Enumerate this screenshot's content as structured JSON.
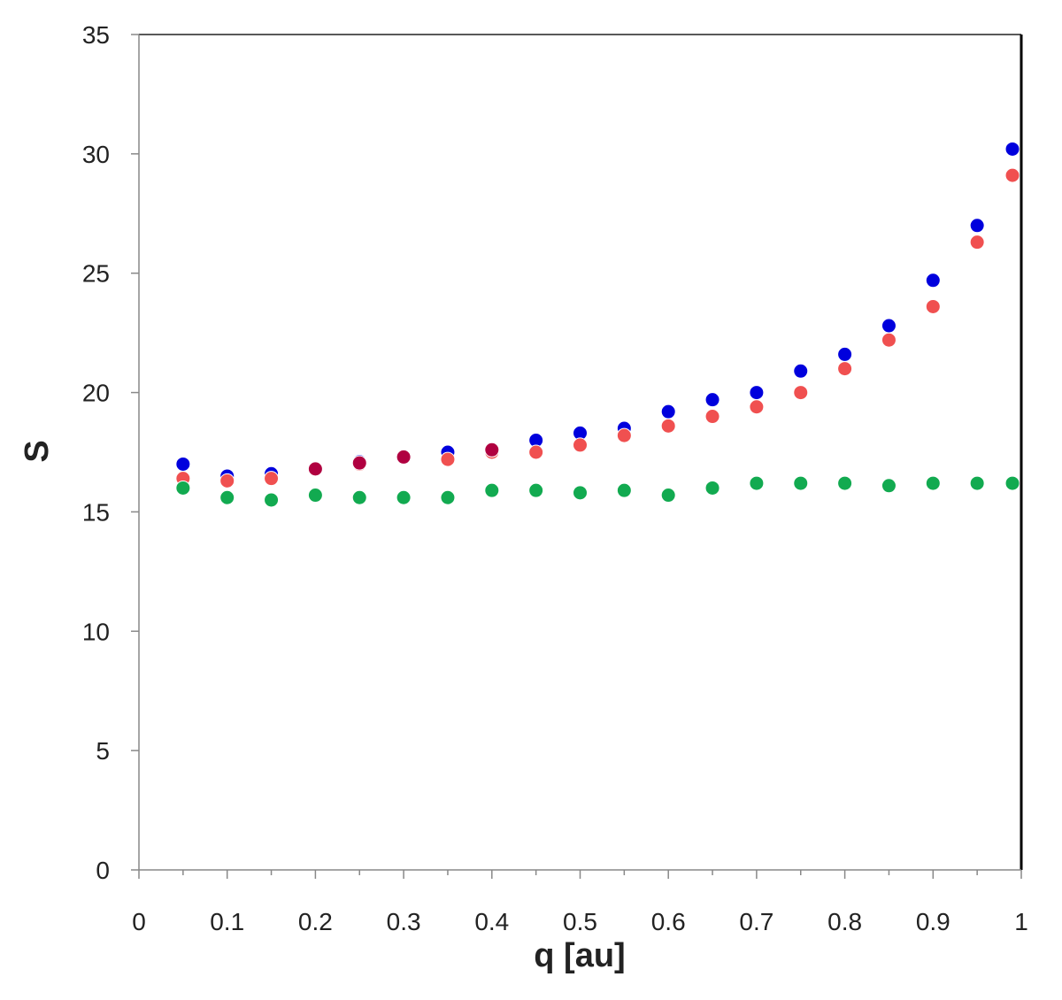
{
  "chart_data": {
    "type": "scatter",
    "title": "",
    "xlabel": "q [au]",
    "ylabel": "S",
    "xlim": [
      0,
      1
    ],
    "ylim": [
      0,
      35
    ],
    "x_ticks": [
      0,
      0.1,
      0.2,
      0.3,
      0.4,
      0.5,
      0.6,
      0.7,
      0.8,
      0.9,
      1
    ],
    "x_tick_labels": [
      "0",
      "0.1",
      "0.2",
      "0.3",
      "0.4",
      "0.5",
      "0.6",
      "0.7",
      "0.8",
      "0.9",
      "1"
    ],
    "y_ticks": [
      0,
      5,
      10,
      15,
      20,
      25,
      30,
      35
    ],
    "y_tick_labels": [
      "0",
      "5",
      "10",
      "15",
      "20",
      "25",
      "30",
      "35"
    ],
    "grid": false,
    "legend": "none",
    "x": [
      0.05,
      0.1,
      0.15,
      0.2,
      0.25,
      0.3,
      0.35,
      0.4,
      0.45,
      0.5,
      0.55,
      0.6,
      0.65,
      0.7,
      0.75,
      0.8,
      0.85,
      0.9,
      0.95,
      0.99
    ],
    "series": [
      {
        "color": "#0000dd",
        "values": [
          17.0,
          16.5,
          16.6,
          16.8,
          17.1,
          17.3,
          17.5,
          17.6,
          18.0,
          18.3,
          18.5,
          19.2,
          19.7,
          20.0,
          20.9,
          21.6,
          22.8,
          24.7,
          27.0,
          30.2
        ]
      },
      {
        "color": "#f05050",
        "values": [
          16.4,
          16.3,
          16.4,
          16.8,
          17.0,
          17.3,
          17.2,
          17.5,
          17.5,
          17.8,
          18.2,
          18.6,
          19.0,
          19.4,
          20.0,
          21.0,
          22.2,
          23.6,
          26.3,
          29.1
        ]
      },
      {
        "color": "#12aa50",
        "values": [
          16.0,
          15.6,
          15.5,
          15.7,
          15.6,
          15.6,
          15.6,
          15.9,
          15.9,
          15.8,
          15.9,
          15.7,
          16.0,
          16.2,
          16.2,
          16.2,
          16.1,
          16.2,
          16.2,
          16.2
        ]
      }
    ],
    "overlap_color": "#b00040",
    "overlap_points": [
      {
        "x": 0.2,
        "y": 16.8
      },
      {
        "x": 0.25,
        "y": 17.05
      },
      {
        "x": 0.3,
        "y": 17.3
      },
      {
        "x": 0.4,
        "y": 17.6
      }
    ]
  }
}
